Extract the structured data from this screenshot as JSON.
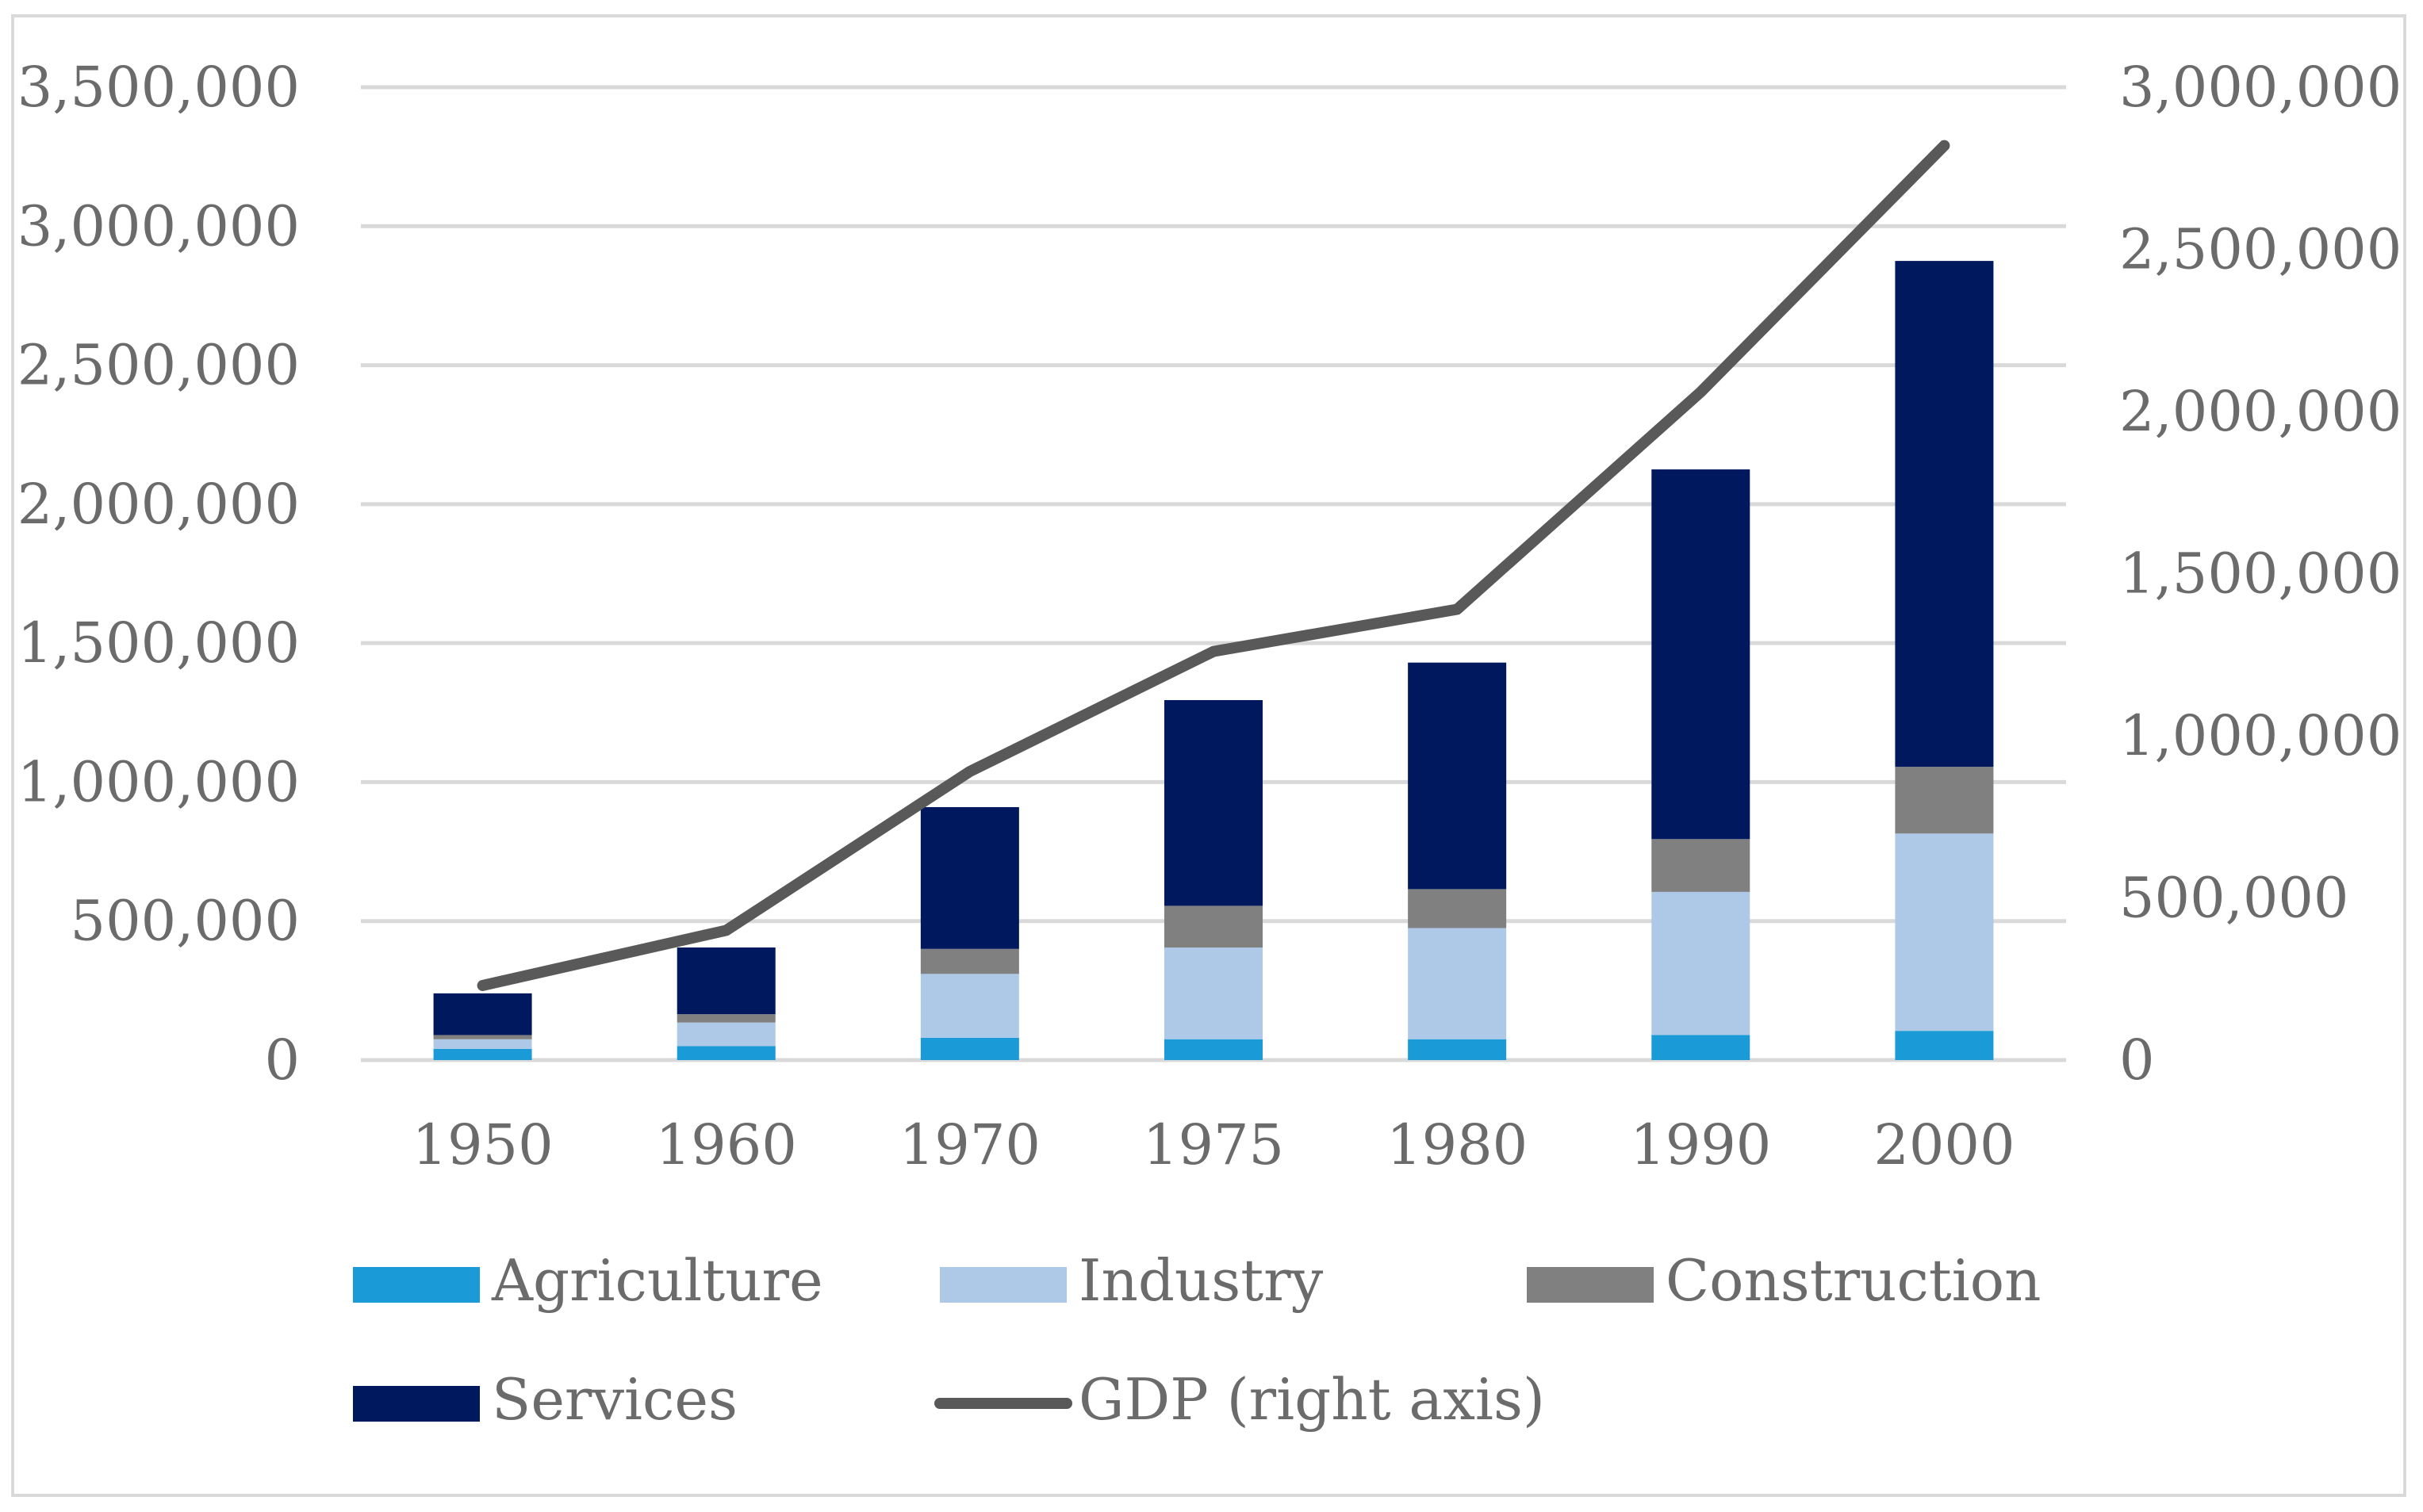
{
  "chart_data": {
    "type": "bar",
    "stacked": true,
    "categories": [
      "1950",
      "1960",
      "1970",
      "1975",
      "1980",
      "1990",
      "2000"
    ],
    "series": [
      {
        "name": "Agriculture",
        "values": [
          40000,
          50000,
          80000,
          75000,
          75000,
          90000,
          105000
        ],
        "color": "#1a9ad7"
      },
      {
        "name": "Industry",
        "values": [
          35000,
          85000,
          230000,
          330000,
          400000,
          515000,
          710000
        ],
        "color": "#aec8e8"
      },
      {
        "name": "Construction",
        "values": [
          15000,
          30000,
          90000,
          150000,
          140000,
          190000,
          240000
        ],
        "color": "#808080"
      },
      {
        "name": "Services",
        "values": [
          150000,
          240000,
          510000,
          740000,
          815000,
          1330000,
          1820000
        ],
        "color": "#00195e"
      }
    ],
    "line_series": {
      "name": "GDP (right axis)",
      "values": [
        230000,
        400000,
        890000,
        1260000,
        1390000,
        2060000,
        2820000
      ],
      "color": "#595959"
    },
    "y_left": {
      "min": 0,
      "max": 3500000,
      "step": 500000,
      "tick_labels": [
        "0",
        "500,000",
        "1,000,000",
        "1,500,000",
        "2,000,000",
        "2,500,000",
        "3,000,000",
        "3,500,000"
      ]
    },
    "y_right": {
      "min": 0,
      "max": 3000000,
      "step": 500000,
      "tick_labels": [
        "0",
        "500,000",
        "1,000,000",
        "1,500,000",
        "2,000,000",
        "2,500,000",
        "3,000,000"
      ]
    },
    "title": "",
    "xlabel": "",
    "ylabel": "",
    "grid": true,
    "legend_position": "bottom"
  },
  "legend": {
    "agriculture": "Agriculture",
    "industry": "Industry",
    "construction": "Construction",
    "services": "Services",
    "gdp": "GDP (right axis)"
  }
}
